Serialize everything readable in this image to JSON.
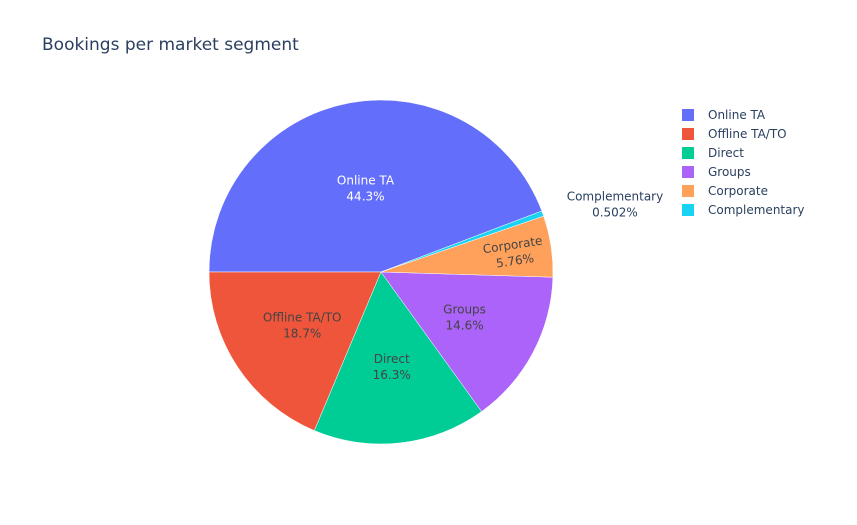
{
  "chart_data": {
    "type": "pie",
    "title": "Bookings per market segment",
    "slices": [
      {
        "label": "Online TA",
        "value": 44.3,
        "display": "44.3%",
        "color": "#636efa"
      },
      {
        "label": "Offline TA/TO",
        "value": 18.7,
        "display": "18.7%",
        "color": "#ef553b"
      },
      {
        "label": "Direct",
        "value": 16.3,
        "display": "16.3%",
        "color": "#00cc96"
      },
      {
        "label": "Groups",
        "value": 14.6,
        "display": "14.6%",
        "color": "#ab63fa"
      },
      {
        "label": "Corporate",
        "value": 5.76,
        "display": "5.76%",
        "color": "#ffa15a"
      },
      {
        "label": "Complementary",
        "value": 0.502,
        "display": "0.502%",
        "color": "#19d3f3"
      }
    ],
    "legend": {
      "placement": "top-right",
      "entries": [
        "Online TA",
        "Offline TA/TO",
        "Direct",
        "Groups",
        "Corporate",
        "Complementary"
      ]
    }
  }
}
